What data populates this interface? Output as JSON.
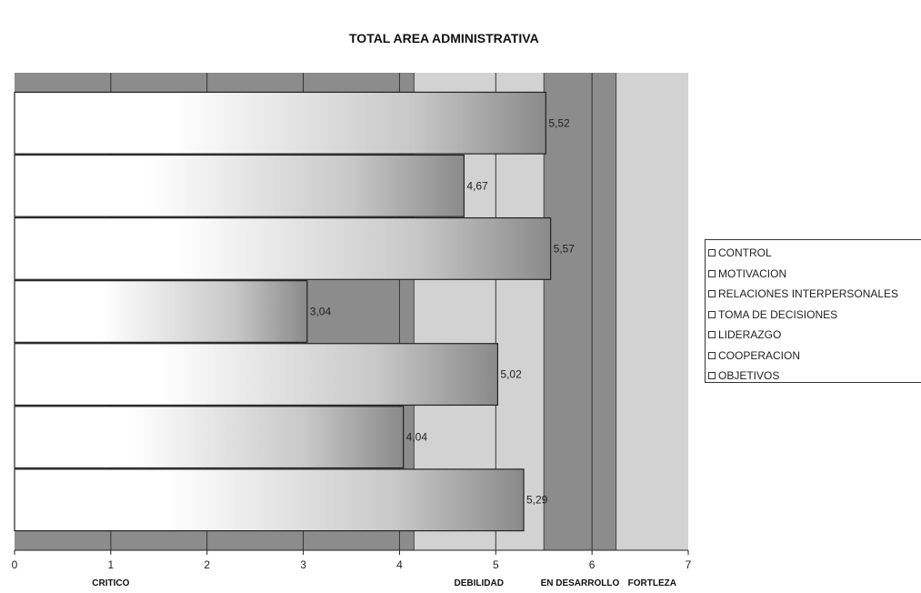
{
  "chart_data": {
    "type": "bar",
    "orientation": "horizontal",
    "title": "TOTAL AREA ADMINISTRATIVA",
    "xlim": [
      0,
      7
    ],
    "x_ticks": [
      "0",
      "1",
      "2",
      "3",
      "4",
      "5",
      "6",
      "7"
    ],
    "categories": [
      "CONTROL",
      "MOTIVACION",
      "RELACIONES INTERPERSONALES",
      "TOMA DE DECISIONES",
      "LIDERAZGO",
      "COOPERACION",
      "OBJETIVOS"
    ],
    "values": [
      5.52,
      4.67,
      5.57,
      3.04,
      5.02,
      4.04,
      5.29
    ],
    "value_labels": [
      "5,52",
      "4,67",
      "5,57",
      "3,04",
      "5,02",
      "4,04",
      "5,29"
    ],
    "bands": [
      {
        "label": "CRITICO",
        "from": 0,
        "to": 4.15,
        "color": "#8c8c8c"
      },
      {
        "label": "DEBILIDAD",
        "from": 4.15,
        "to": 5.5,
        "color": "#d2d2d2"
      },
      {
        "label": "EN DESARROLLO",
        "from": 5.5,
        "to": 6.25,
        "color": "#8c8c8c"
      },
      {
        "label": "FORTLEZA",
        "from": 6.25,
        "to": 7,
        "color": "#d2d2d2"
      }
    ],
    "legend": {
      "position": "right",
      "entries": [
        "CONTROL",
        "MOTIVACION",
        "RELACIONES INTERPERSONALES",
        "TOMA DE DECISIONES",
        "LIDERAZGO",
        "COOPERACION",
        "OBJETIVOS"
      ]
    },
    "grid": true
  }
}
